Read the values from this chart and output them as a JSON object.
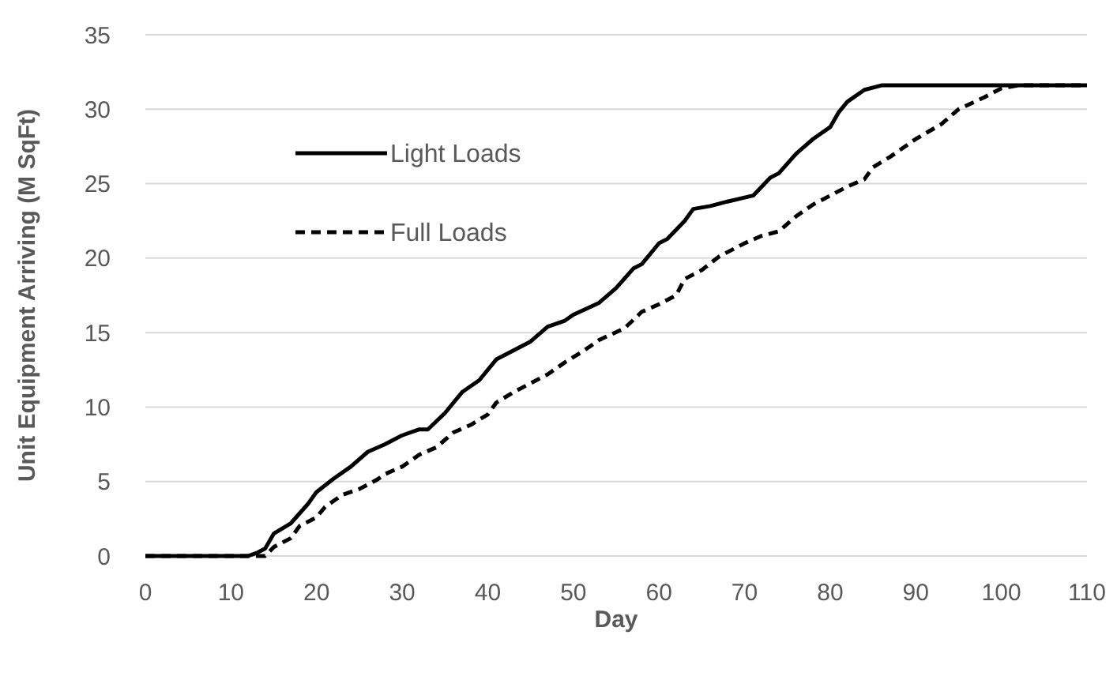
{
  "chart_data": {
    "type": "line",
    "xlabel": "Day",
    "ylabel": "Unit Equipment Arriving (M SqFt)",
    "xlim": [
      0,
      110
    ],
    "ylim": [
      0,
      35
    ],
    "xticks": [
      0,
      10,
      20,
      30,
      40,
      50,
      60,
      70,
      80,
      90,
      100,
      110
    ],
    "yticks": [
      0,
      5,
      10,
      15,
      20,
      25,
      30,
      35
    ],
    "grid": "y",
    "legend": "top left",
    "marker": "none",
    "series": [
      {
        "name": "Light Loads",
        "color": "#000000",
        "line_style": "solid",
        "x": [
          0,
          12,
          13,
          14,
          15,
          17,
          19,
          20,
          22,
          24,
          26,
          28,
          30,
          32,
          33,
          35,
          37,
          39,
          41,
          43,
          45,
          47,
          49,
          50,
          53,
          55,
          57,
          58,
          60,
          61,
          63,
          64,
          66,
          68,
          71,
          73,
          74,
          76,
          78,
          80,
          81,
          82,
          84,
          86,
          110
        ],
        "values": [
          0,
          0,
          0.2,
          0.5,
          1.5,
          2.2,
          3.5,
          4.3,
          5.2,
          6.0,
          7.0,
          7.5,
          8.1,
          8.5,
          8.5,
          9.6,
          11,
          11.8,
          13.2,
          13.8,
          14.4,
          15.4,
          15.8,
          16.2,
          17,
          18,
          19.3,
          19.6,
          21,
          21.3,
          22.5,
          23.3,
          23.5,
          23.8,
          24.2,
          25.4,
          25.7,
          27,
          28,
          28.8,
          29.8,
          30.5,
          31.3,
          31.6,
          31.6
        ]
      },
      {
        "name": "Full Loads",
        "color": "#000000",
        "line_style": "dashed",
        "x": [
          0,
          14,
          15,
          17,
          18,
          20,
          21,
          23,
          25,
          27,
          28,
          30,
          32,
          34,
          36,
          38,
          40,
          41,
          43,
          45,
          47,
          49,
          51,
          53,
          56,
          58,
          60,
          62,
          63,
          65,
          67,
          70,
          72,
          74,
          76,
          78,
          80,
          82,
          84,
          85,
          87,
          90,
          93,
          95,
          98,
          100,
          102,
          110
        ],
        "values": [
          0,
          0,
          0.6,
          1.2,
          2,
          2.6,
          3.3,
          4.1,
          4.5,
          5.1,
          5.5,
          6,
          6.8,
          7.3,
          8.3,
          8.8,
          9.5,
          10.3,
          11,
          11.6,
          12.2,
          13,
          13.7,
          14.5,
          15.3,
          16.4,
          16.9,
          17.5,
          18.6,
          19.2,
          20.1,
          21,
          21.5,
          21.8,
          22.8,
          23.6,
          24.2,
          24.8,
          25.3,
          26.1,
          26.8,
          28,
          29,
          30,
          30.8,
          31.4,
          31.6,
          31.6
        ]
      }
    ]
  }
}
